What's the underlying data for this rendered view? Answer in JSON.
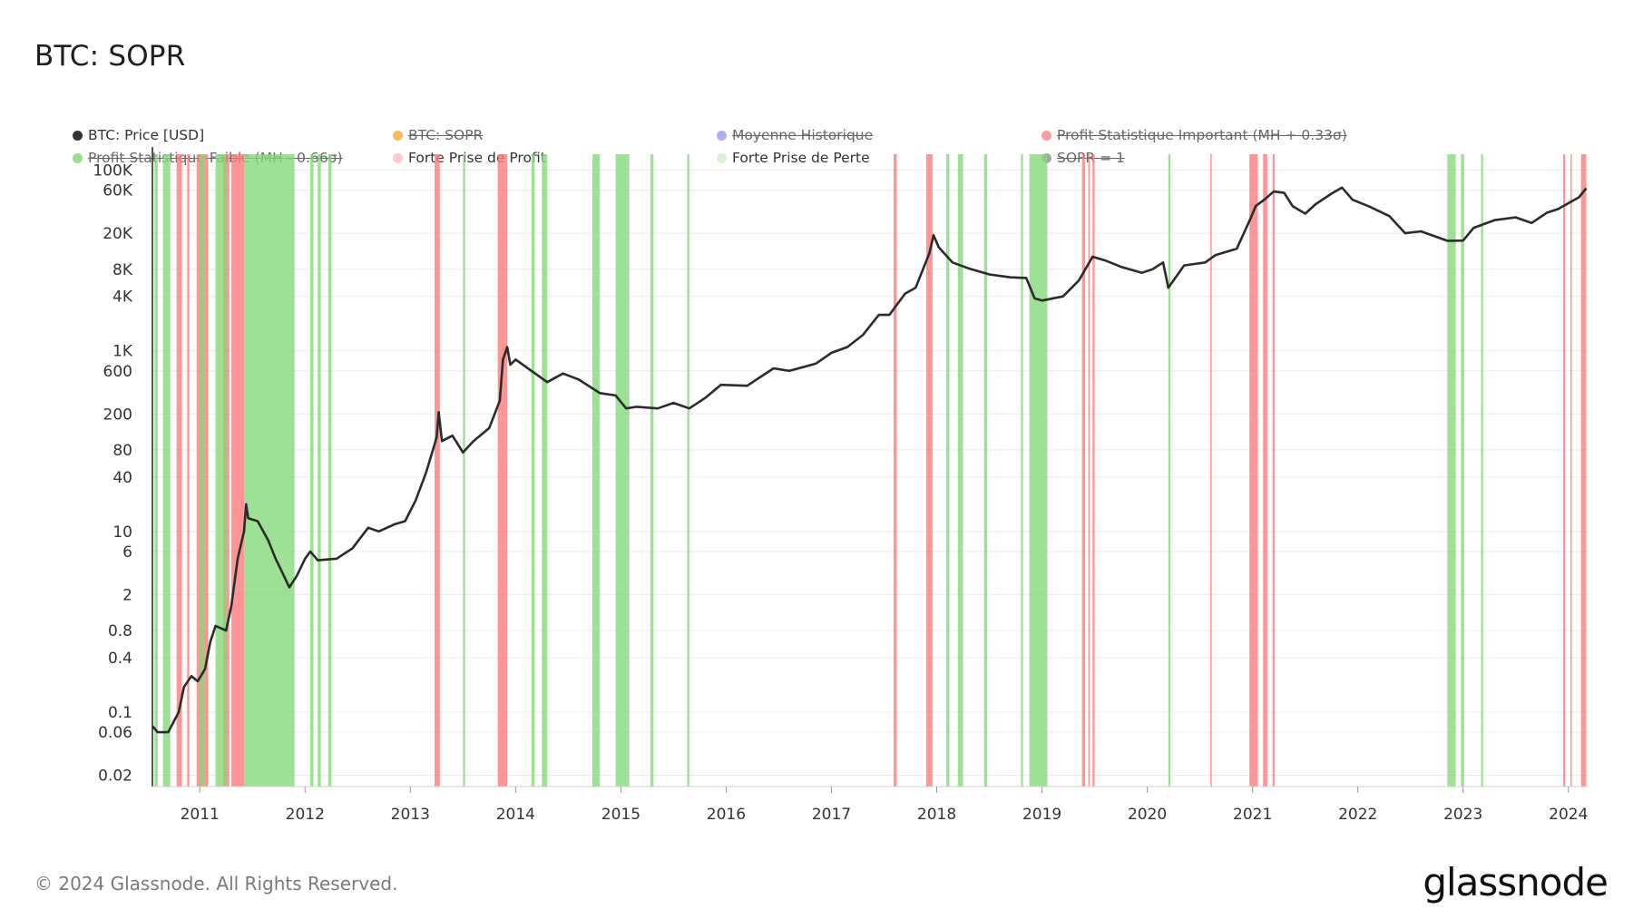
{
  "title": "BTC: SOPR",
  "footer": {
    "copyright": "© 2024 Glassnode. All Rights Reserved.",
    "brand": "glassnode"
  },
  "legend": [
    {
      "label": "BTC: Price [USD]",
      "color": "#333333",
      "active": true
    },
    {
      "label": "BTC: SOPR",
      "color": "#f5a623",
      "active": false
    },
    {
      "label": "Moyenne Historique",
      "color": "#8f96e8",
      "active": false
    },
    {
      "label": "Profit Statistique Important (MH + 0.33σ)",
      "color": "#f08080",
      "active": false
    },
    {
      "label": "Profit Statistique Faible (MH - 0.66σ)",
      "color": "#7ccd6e",
      "active": false
    },
    {
      "label": "Forte Prise de Profit",
      "color": "#ffcccc",
      "active": true
    },
    {
      "label": "Forte Prise de Perte",
      "color": "#d9f2d5",
      "active": true
    },
    {
      "label": "SOPR = 1",
      "color": "#888888",
      "active": false
    }
  ],
  "chart_data": {
    "type": "line",
    "yscale": "log",
    "ylim": [
      0.015,
      150000
    ],
    "xlim": [
      2010.55,
      2024.2
    ],
    "y_ticks": [
      {
        "label": "100K",
        "value": 100000
      },
      {
        "label": "60K",
        "value": 60000
      },
      {
        "label": "20K",
        "value": 20000
      },
      {
        "label": "8K",
        "value": 8000
      },
      {
        "label": "4K",
        "value": 4000
      },
      {
        "label": "1K",
        "value": 1000
      },
      {
        "label": "600",
        "value": 600
      },
      {
        "label": "200",
        "value": 200
      },
      {
        "label": "80",
        "value": 80
      },
      {
        "label": "40",
        "value": 40
      },
      {
        "label": "10",
        "value": 10
      },
      {
        "label": "6",
        "value": 6
      },
      {
        "label": "2",
        "value": 2
      },
      {
        "label": "0.8",
        "value": 0.8
      },
      {
        "label": "0.4",
        "value": 0.4
      },
      {
        "label": "0.1",
        "value": 0.1
      },
      {
        "label": "0.06",
        "value": 0.06
      },
      {
        "label": "0.02",
        "value": 0.02
      }
    ],
    "x_ticks": [
      "2011",
      "2012",
      "2013",
      "2014",
      "2015",
      "2016",
      "2017",
      "2018",
      "2019",
      "2020",
      "2021",
      "2022",
      "2023",
      "2024"
    ],
    "series": [
      {
        "name": "BTC: Price [USD]",
        "color": "#2b2b2b",
        "points": [
          [
            2010.55,
            0.07
          ],
          [
            2010.6,
            0.06
          ],
          [
            2010.7,
            0.06
          ],
          [
            2010.8,
            0.1
          ],
          [
            2010.85,
            0.19
          ],
          [
            2010.92,
            0.25
          ],
          [
            2010.98,
            0.22
          ],
          [
            2011.05,
            0.3
          ],
          [
            2011.1,
            0.6
          ],
          [
            2011.15,
            0.9
          ],
          [
            2011.25,
            0.8
          ],
          [
            2011.3,
            1.5
          ],
          [
            2011.36,
            5
          ],
          [
            2011.42,
            10
          ],
          [
            2011.44,
            20
          ],
          [
            2011.46,
            14
          ],
          [
            2011.55,
            13
          ],
          [
            2011.65,
            8
          ],
          [
            2011.72,
            5
          ],
          [
            2011.8,
            3.2
          ],
          [
            2011.85,
            2.4
          ],
          [
            2011.92,
            3.2
          ],
          [
            2012.0,
            5
          ],
          [
            2012.05,
            6
          ],
          [
            2012.12,
            4.8
          ],
          [
            2012.3,
            5
          ],
          [
            2012.45,
            6.5
          ],
          [
            2012.6,
            11
          ],
          [
            2012.7,
            10
          ],
          [
            2012.85,
            12
          ],
          [
            2012.95,
            13
          ],
          [
            2013.05,
            22
          ],
          [
            2013.15,
            45
          ],
          [
            2013.25,
            110
          ],
          [
            2013.27,
            210
          ],
          [
            2013.3,
            100
          ],
          [
            2013.4,
            115
          ],
          [
            2013.5,
            75
          ],
          [
            2013.6,
            100
          ],
          [
            2013.75,
            140
          ],
          [
            2013.85,
            280
          ],
          [
            2013.88,
            800
          ],
          [
            2013.92,
            1100
          ],
          [
            2013.95,
            700
          ],
          [
            2014.0,
            800
          ],
          [
            2014.15,
            600
          ],
          [
            2014.3,
            450
          ],
          [
            2014.45,
            560
          ],
          [
            2014.6,
            480
          ],
          [
            2014.8,
            340
          ],
          [
            2014.95,
            320
          ],
          [
            2015.05,
            230
          ],
          [
            2015.15,
            240
          ],
          [
            2015.35,
            230
          ],
          [
            2015.5,
            265
          ],
          [
            2015.65,
            230
          ],
          [
            2015.8,
            300
          ],
          [
            2015.95,
            420
          ],
          [
            2016.2,
            410
          ],
          [
            2016.45,
            640
          ],
          [
            2016.6,
            600
          ],
          [
            2016.85,
            720
          ],
          [
            2017.0,
            950
          ],
          [
            2017.15,
            1100
          ],
          [
            2017.3,
            1500
          ],
          [
            2017.45,
            2500
          ],
          [
            2017.55,
            2500
          ],
          [
            2017.7,
            4300
          ],
          [
            2017.8,
            5000
          ],
          [
            2017.93,
            12000
          ],
          [
            2017.97,
            19000
          ],
          [
            2018.02,
            14000
          ],
          [
            2018.15,
            9500
          ],
          [
            2018.3,
            8200
          ],
          [
            2018.5,
            7000
          ],
          [
            2018.7,
            6500
          ],
          [
            2018.85,
            6400
          ],
          [
            2018.93,
            3800
          ],
          [
            2019.0,
            3600
          ],
          [
            2019.2,
            4000
          ],
          [
            2019.35,
            6000
          ],
          [
            2019.48,
            11000
          ],
          [
            2019.6,
            10000
          ],
          [
            2019.75,
            8500
          ],
          [
            2019.95,
            7300
          ],
          [
            2020.05,
            8000
          ],
          [
            2020.15,
            9500
          ],
          [
            2020.2,
            5000
          ],
          [
            2020.35,
            8800
          ],
          [
            2020.55,
            9500
          ],
          [
            2020.65,
            11500
          ],
          [
            2020.85,
            13500
          ],
          [
            2020.98,
            29000
          ],
          [
            2021.03,
            40000
          ],
          [
            2021.12,
            48000
          ],
          [
            2021.2,
            58000
          ],
          [
            2021.3,
            56000
          ],
          [
            2021.38,
            40000
          ],
          [
            2021.5,
            33000
          ],
          [
            2021.6,
            42000
          ],
          [
            2021.75,
            55000
          ],
          [
            2021.85,
            64000
          ],
          [
            2021.95,
            47000
          ],
          [
            2022.1,
            40000
          ],
          [
            2022.3,
            31000
          ],
          [
            2022.45,
            20000
          ],
          [
            2022.6,
            21000
          ],
          [
            2022.85,
            16500
          ],
          [
            2023.0,
            16600
          ],
          [
            2023.1,
            23000
          ],
          [
            2023.3,
            28000
          ],
          [
            2023.5,
            30000
          ],
          [
            2023.65,
            26000
          ],
          [
            2023.8,
            34000
          ],
          [
            2023.9,
            37000
          ],
          [
            2024.0,
            43000
          ],
          [
            2024.1,
            50000
          ],
          [
            2024.17,
            63000
          ]
        ]
      }
    ],
    "profit_bands": [
      [
        2010.78,
        2010.83
      ],
      [
        2010.88,
        2010.9
      ],
      [
        2010.97,
        2011.08
      ],
      [
        2011.22,
        2011.28
      ],
      [
        2011.3,
        2011.42
      ],
      [
        2013.23,
        2013.28
      ],
      [
        2013.83,
        2013.92
      ],
      [
        2017.59,
        2017.62
      ],
      [
        2017.9,
        2017.96
      ],
      [
        2019.38,
        2019.41
      ],
      [
        2019.44,
        2019.45
      ],
      [
        2019.48,
        2019.5
      ],
      [
        2020.6,
        2020.61
      ],
      [
        2020.97,
        2021.05
      ],
      [
        2021.1,
        2021.14
      ],
      [
        2021.19,
        2021.21
      ],
      [
        2023.95,
        2023.97
      ],
      [
        2024.02,
        2024.03
      ],
      [
        2024.12,
        2024.17
      ]
    ],
    "loss_bands": [
      [
        2010.57,
        2010.6
      ],
      [
        2010.65,
        2010.72
      ],
      [
        2011.0,
        2011.05
      ],
      [
        2011.15,
        2011.25
      ],
      [
        2011.42,
        2011.9
      ],
      [
        2012.05,
        2012.08
      ],
      [
        2012.12,
        2012.15
      ],
      [
        2012.22,
        2012.25
      ],
      [
        2013.5,
        2013.52
      ],
      [
        2014.15,
        2014.18
      ],
      [
        2014.25,
        2014.3
      ],
      [
        2014.73,
        2014.8
      ],
      [
        2014.95,
        2015.08
      ],
      [
        2015.28,
        2015.31
      ],
      [
        2015.63,
        2015.65
      ],
      [
        2018.09,
        2018.12
      ],
      [
        2018.2,
        2018.25
      ],
      [
        2018.45,
        2018.48
      ],
      [
        2018.8,
        2018.82
      ],
      [
        2018.88,
        2019.05
      ],
      [
        2020.2,
        2020.22
      ],
      [
        2022.85,
        2022.93
      ],
      [
        2022.98,
        2023.01
      ],
      [
        2023.17,
        2023.19
      ]
    ]
  }
}
